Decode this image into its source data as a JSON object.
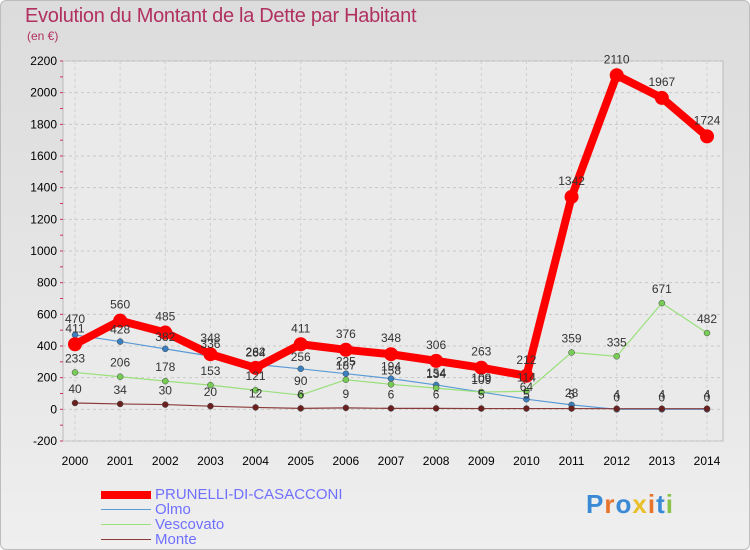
{
  "chart_data": {
    "type": "line",
    "title": "Evolution du Montant de la Dette par Habitant",
    "subtitle": "(en €)",
    "xlabel": "",
    "ylabel": "",
    "x": [
      "2000",
      "2001",
      "2002",
      "2003",
      "2004",
      "2005",
      "2006",
      "2007",
      "2008",
      "2009",
      "2010",
      "2011",
      "2012",
      "2013",
      "2014"
    ],
    "ylim": [
      -200,
      2200
    ],
    "yticks": [
      -200,
      0,
      200,
      400,
      600,
      800,
      1000,
      1200,
      1400,
      1600,
      1800,
      2000,
      2200
    ],
    "series": [
      {
        "name": "Olmo",
        "color": "#5b9bd5",
        "width": 1.2,
        "dot": "#3a7fc0",
        "values": [
          470,
          428,
          382,
          336,
          284,
          256,
          225,
          194,
          154,
          109,
          64,
          28,
          0,
          0,
          0
        ]
      },
      {
        "name": "Vescovato",
        "color": "#99e07a",
        "width": 1.2,
        "dot": "#77cc55",
        "values": [
          233,
          206,
          178,
          153,
          121,
          90,
          187,
          158,
          134,
          109,
          114,
          359,
          335,
          671,
          482
        ]
      },
      {
        "name": "Monte",
        "color": "#8b3a3a",
        "width": 1.2,
        "dot": "#6b2020",
        "values": [
          40,
          34,
          30,
          20,
          12,
          6,
          9,
          6,
          6,
          5,
          5,
          5,
          4,
          4,
          4
        ]
      },
      {
        "name": "PRUNELLI-DI-CASACCONI",
        "color": "#ff0000",
        "width": 8,
        "dot": "#ff0000",
        "values": [
          411,
          560,
          485,
          348,
          262,
          411,
          376,
          348,
          306,
          263,
          212,
          1342,
          2110,
          1967,
          1724
        ]
      }
    ],
    "data_labels": [
      {
        "x": 0,
        "text": "470",
        "dy": -6
      },
      {
        "x": 0,
        "text": "411",
        "dy": -10,
        "series": 3
      },
      {
        "x": 0,
        "text": "233",
        "series": 1
      },
      {
        "x": 0,
        "text": "40",
        "series": 2
      },
      {
        "x": 1,
        "text": "560",
        "series": 3
      },
      {
        "x": 1,
        "text": "428",
        "series": 0
      },
      {
        "x": 1,
        "text": "206",
        "series": 1
      },
      {
        "x": 1,
        "text": "34",
        "series": 2
      }
    ],
    "legend": [
      "PRUNELLI-DI-CASACCONI",
      "Olmo",
      "Vescovato",
      "Monte"
    ],
    "legend_position": "bottom-left"
  },
  "branding": {
    "logo_text": "Proxiti"
  }
}
